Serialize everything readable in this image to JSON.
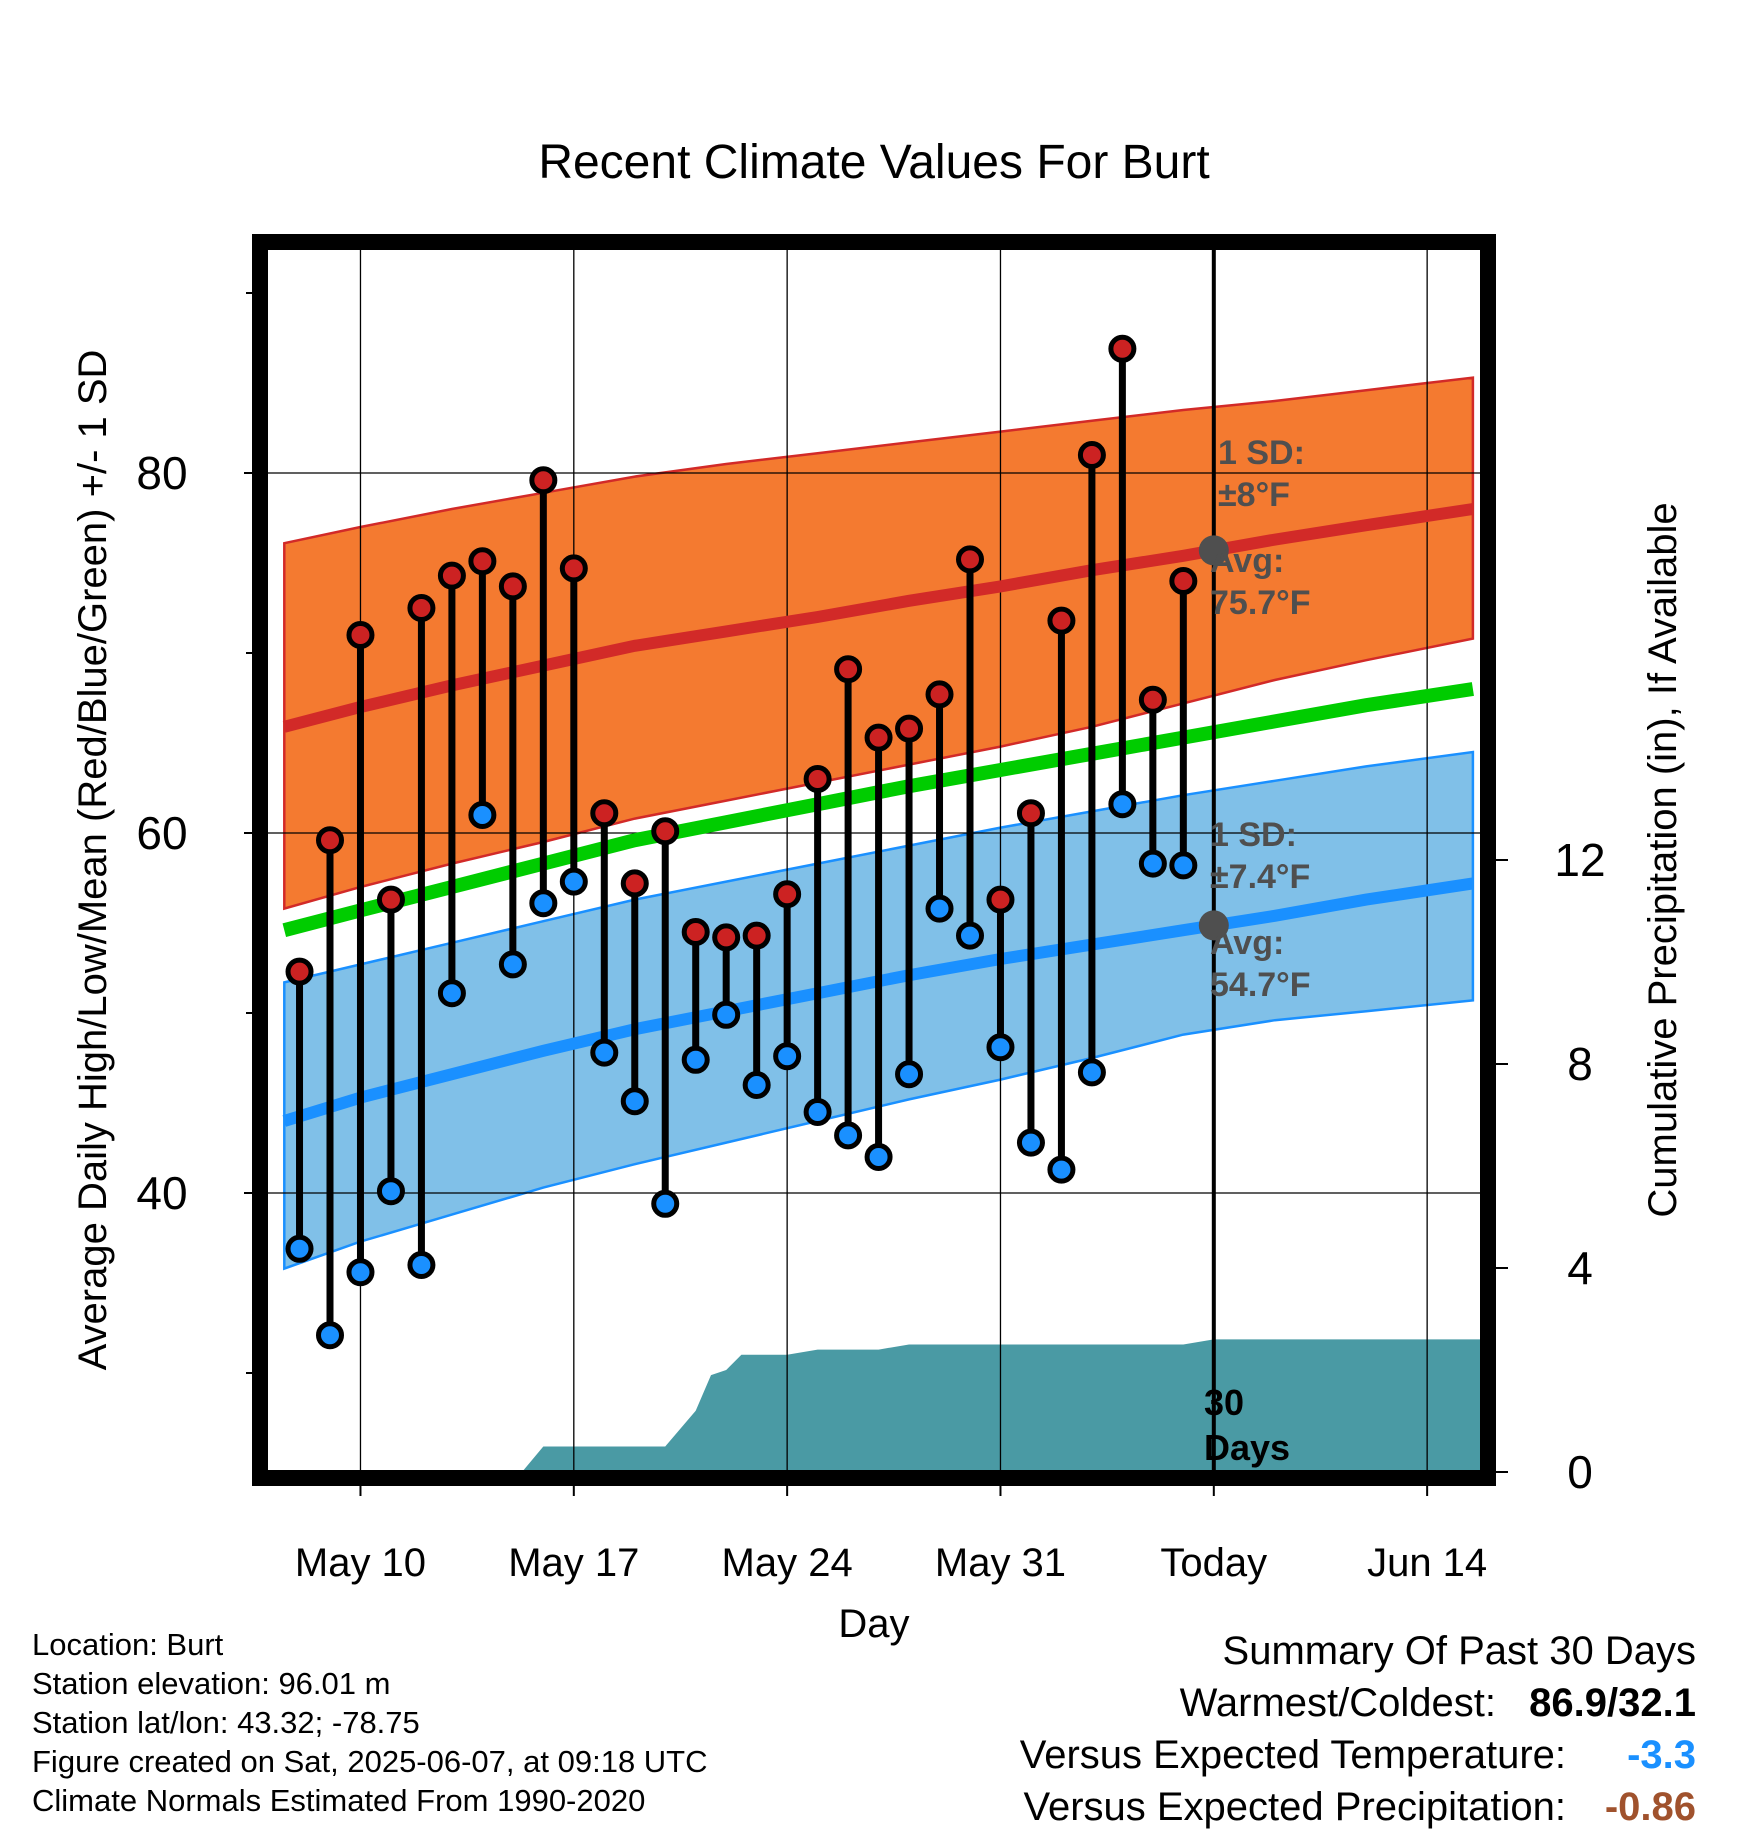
{
  "chart_data": {
    "type": "line",
    "title": "Recent Climate Values For Burt",
    "xlabel": "Day",
    "ylabel": "Average Daily High/Low/Mean (Red/Blue/Green) +/- 1 SD",
    "y2label": "Cumulative Precipitation (in), If Available",
    "x_ticks": [
      {
        "day": 10,
        "label": "May 10"
      },
      {
        "day": 17,
        "label": "May 17"
      },
      {
        "day": 24,
        "label": "May 24"
      },
      {
        "day": 31,
        "label": "May 31"
      },
      {
        "day": 38,
        "label": "Today"
      },
      {
        "day": 45,
        "label": "Jun 14"
      }
    ],
    "xlim": [
      6.9,
      46.8
    ],
    "ylim": [
      24.5,
      92.5
    ],
    "y_ticks": [
      40,
      60,
      80
    ],
    "y_minor_ticks": [
      30,
      50,
      70,
      90
    ],
    "y2lim": [
      0,
      24
    ],
    "y2_ticks": [
      0,
      4,
      8,
      12
    ],
    "today_day": 38,
    "normals": {
      "day": [
        7.5,
        10,
        13,
        16,
        19,
        22,
        25,
        28,
        31,
        34,
        37,
        40,
        43,
        46.5
      ],
      "high_upper": [
        76.1,
        77.0,
        78.0,
        78.9,
        79.8,
        80.5,
        81.1,
        81.7,
        82.3,
        82.9,
        83.5,
        84.0,
        84.6,
        85.3
      ],
      "high_mean": [
        65.9,
        67.0,
        68.2,
        69.3,
        70.4,
        71.2,
        72.0,
        72.9,
        73.7,
        74.6,
        75.4,
        76.3,
        77.1,
        78.0
      ],
      "high_lower": [
        55.8,
        57.0,
        58.3,
        59.5,
        60.8,
        61.8,
        62.8,
        63.8,
        64.8,
        65.9,
        67.2,
        68.5,
        69.6,
        70.8
      ],
      "mean": [
        54.6,
        55.7,
        57.0,
        58.3,
        59.6,
        60.6,
        61.6,
        62.6,
        63.5,
        64.4,
        65.3,
        66.2,
        67.1,
        68.0
      ],
      "low_upper": [
        51.7,
        52.7,
        53.9,
        55.1,
        56.3,
        57.3,
        58.3,
        59.3,
        60.3,
        61.2,
        62.1,
        62.9,
        63.7,
        64.5
      ],
      "low_mean": [
        44.0,
        45.3,
        46.6,
        47.9,
        49.1,
        50.1,
        51.1,
        52.1,
        53.0,
        53.8,
        54.6,
        55.4,
        56.3,
        57.2
      ],
      "low_lower": [
        35.8,
        37.3,
        38.8,
        40.3,
        41.6,
        42.8,
        44.0,
        45.2,
        46.3,
        47.5,
        48.8,
        49.6,
        50.1,
        50.7
      ]
    },
    "observed": {
      "day": [
        8,
        9,
        10,
        11,
        12,
        13,
        14,
        15,
        16,
        17,
        18,
        19,
        20,
        21,
        22,
        23,
        24,
        25,
        26,
        27,
        28,
        29,
        30,
        31,
        32,
        33,
        34,
        35,
        36,
        37
      ],
      "high": [
        52.3,
        59.6,
        71.0,
        56.3,
        72.5,
        74.3,
        75.1,
        73.7,
        79.6,
        74.7,
        61.1,
        57.2,
        60.1,
        54.5,
        54.2,
        54.3,
        56.6,
        63.0,
        69.1,
        65.3,
        65.8,
        67.7,
        75.2,
        56.3,
        61.1,
        71.8,
        81.0,
        86.9,
        67.4,
        74.0
      ],
      "low": [
        36.9,
        32.1,
        35.6,
        40.1,
        36.0,
        51.1,
        61.0,
        52.7,
        56.1,
        57.3,
        47.8,
        45.1,
        39.4,
        47.4,
        49.9,
        46.0,
        47.6,
        44.5,
        43.2,
        42.0,
        46.6,
        55.8,
        54.3,
        48.1,
        42.8,
        41.3,
        46.7,
        61.6,
        58.3,
        58.2
      ]
    },
    "precip": {
      "day": [
        6.9,
        12,
        13,
        14,
        14.8,
        15.3,
        16,
        17,
        18,
        19,
        20,
        21,
        21.5,
        22,
        22.5,
        23,
        24,
        25,
        26,
        27,
        28,
        29,
        30,
        31,
        32,
        33,
        34,
        35,
        36,
        37,
        38,
        39,
        40,
        41,
        42,
        43,
        44,
        45,
        46,
        46.8
      ],
      "value": [
        0.0,
        0.0,
        0.0,
        0.0,
        0.0,
        0.0,
        0.5,
        0.5,
        0.5,
        0.5,
        0.5,
        1.2,
        1.9,
        2.0,
        2.3,
        2.3,
        2.3,
        2.4,
        2.4,
        2.4,
        2.5,
        2.5,
        2.5,
        2.5,
        2.5,
        2.5,
        2.5,
        2.5,
        2.5,
        2.5,
        2.6,
        2.6,
        2.6,
        2.6,
        2.6,
        2.6,
        2.6,
        2.6,
        2.6,
        2.6
      ]
    },
    "colors": {
      "high_band": "#f47a30",
      "high_line": "#d22a28",
      "mean_line": "#00cc00",
      "low_band": "#80c0e8",
      "low_line": "#1a90ff",
      "precip": "#4a9aa4",
      "marker_high": "#cc2222",
      "marker_low": "#1a90ff",
      "annotation": "#4f4f4f",
      "temp_departure": "#1a90ff",
      "precip_departure": "#a0522d"
    },
    "annotations": {
      "high_sd_label": "1 SD:",
      "high_sd_value": "±8°F",
      "high_avg_label": "Avg:",
      "high_avg_value": "75.7°F",
      "low_sd_label": "1 SD:",
      "low_sd_value": "±7.4°F",
      "low_avg_label": "Avg:",
      "low_avg_value": "54.7°F",
      "precip_label_1": "30",
      "precip_label_2": "Days"
    },
    "legend": "none",
    "grid": true
  },
  "footer": {
    "location": "Location: Burt",
    "elevation": "Station elevation: 96.01 m",
    "latlon": "Station lat/lon: 43.32; -78.75",
    "created": "Figure created on Sat, 2025-06-07, at 09:18 UTC",
    "normals": "Climate Normals Estimated From 1990-2020"
  },
  "summary": {
    "title": "Summary Of Past 30 Days",
    "warmest_coldest_label": "Warmest/Coldest:",
    "warmest_coldest_value": "86.9/32.1",
    "temp_label": "Versus Expected Temperature:",
    "temp_value": "-3.3",
    "precip_label": "Versus Expected Precipitation:",
    "precip_value": "-0.86"
  }
}
